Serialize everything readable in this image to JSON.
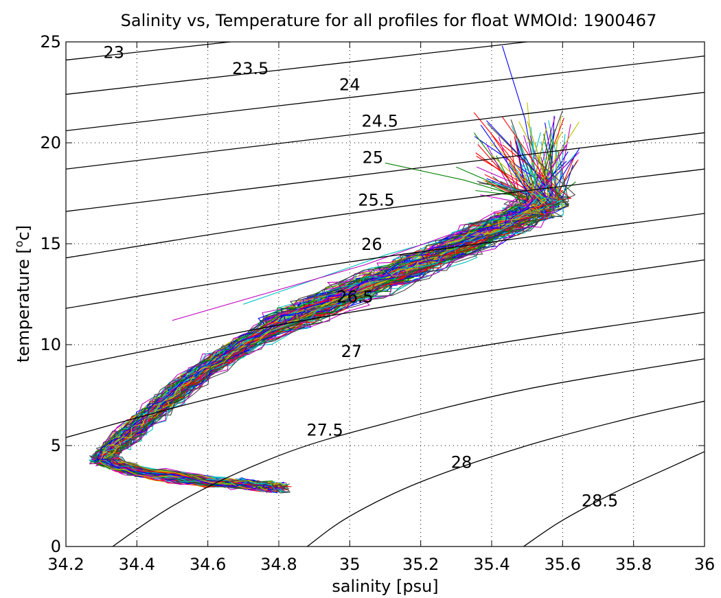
{
  "chart_data": {
    "type": "line",
    "title": "Salinity vs, Temperature for all profiles for float WMOId: 1900467",
    "xlabel": "salinity [psu]",
    "ylabel_main": "temperature [",
    "ylabel_sup": "o",
    "ylabel_tail": "c]",
    "xlim": [
      34.2,
      36.0
    ],
    "ylim": [
      0,
      25
    ],
    "x_ticks": [
      "34.2",
      "34.4",
      "34.6",
      "34.8",
      "35",
      "35.2",
      "35.4",
      "35.6",
      "35.8",
      "36"
    ],
    "y_ticks": [
      "0",
      "5",
      "10",
      "15",
      "20",
      "25"
    ],
    "grid": true,
    "grid_style": "dotted",
    "density_contours": [
      {
        "label": "23",
        "x": [
          34.2,
          36.0
        ],
        "y": [
          24.1,
          27.6
        ]
      },
      {
        "label": "23.5",
        "x": [
          34.2,
          36.0
        ],
        "y": [
          22.4,
          26.0
        ]
      },
      {
        "label": "24",
        "x": [
          34.2,
          36.0
        ],
        "y": [
          20.6,
          24.3
        ]
      },
      {
        "label": "24.5",
        "x": [
          34.2,
          36.0
        ],
        "y": [
          18.7,
          22.5
        ]
      },
      {
        "label": "25",
        "x": [
          34.2,
          36.0
        ],
        "y": [
          16.6,
          20.5
        ]
      },
      {
        "label": "25.5",
        "x": [
          34.2,
          35.0,
          36.0
        ],
        "y": [
          14.3,
          16.5,
          18.7
        ]
      },
      {
        "label": "26",
        "x": [
          34.2,
          35.0,
          36.0
        ],
        "y": [
          11.8,
          14.1,
          16.5
        ]
      },
      {
        "label": "26.5",
        "x": [
          34.2,
          35.0,
          36.0
        ],
        "y": [
          8.9,
          11.6,
          14.2
        ]
      },
      {
        "label": "27",
        "x": [
          34.2,
          34.6,
          35.0,
          35.5,
          36.0
        ],
        "y": [
          5.4,
          7.3,
          8.8,
          10.3,
          11.6
        ]
      },
      {
        "label": "27.5",
        "x": [
          34.2,
          34.5,
          34.8,
          35.1,
          35.5,
          36.0
        ],
        "y": [
          -1.7,
          2.0,
          4.5,
          6.1,
          7.8,
          9.3
        ]
      },
      {
        "label": "28",
        "x": [
          34.88,
          35.0,
          35.2,
          35.5,
          35.8,
          36.0
        ],
        "y": [
          0.0,
          1.5,
          3.2,
          5.0,
          6.4,
          7.2
        ]
      },
      {
        "label": "28.5",
        "x": [
          35.49,
          35.6,
          35.75,
          35.9,
          36.0
        ],
        "y": [
          0.0,
          1.3,
          2.7,
          3.9,
          4.7
        ]
      }
    ],
    "contour_label_positions": [
      {
        "label": "23",
        "x": 34.335,
        "y": 24.5
      },
      {
        "label": "23.5",
        "x": 34.72,
        "y": 23.7
      },
      {
        "label": "24",
        "x": 35.0,
        "y": 22.9
      },
      {
        "label": "24.5",
        "x": 35.085,
        "y": 21.1
      },
      {
        "label": "25",
        "x": 35.065,
        "y": 19.3
      },
      {
        "label": "25.5",
        "x": 35.075,
        "y": 17.2
      },
      {
        "label": "26",
        "x": 35.062,
        "y": 15.0
      },
      {
        "label": "26.5",
        "x": 35.015,
        "y": 12.4
      },
      {
        "label": "27",
        "x": 35.005,
        "y": 9.7
      },
      {
        "label": "27.5",
        "x": 34.93,
        "y": 5.8
      },
      {
        "label": "28",
        "x": 35.315,
        "y": 4.2
      },
      {
        "label": "28.5",
        "x": 35.705,
        "y": 2.3
      }
    ],
    "profile_colors": [
      "#0000ff",
      "#008000",
      "#ff0000",
      "#00bfbf",
      "#bf00bf",
      "#bfbf00",
      "#404040"
    ],
    "profile_count": 120,
    "profile_path": {
      "x": [
        35.55,
        35.48,
        35.38,
        35.25,
        35.12,
        34.98,
        34.85,
        34.72,
        34.62,
        34.52,
        34.45,
        34.38,
        34.32,
        34.3,
        34.4,
        34.6,
        34.75,
        34.8
      ],
      "y": [
        17.0,
        16.3,
        15.5,
        14.4,
        13.4,
        12.4,
        11.4,
        10.2,
        9.1,
        7.8,
        6.7,
        5.6,
        4.7,
        4.3,
        3.7,
        3.2,
        3.0,
        2.9
      ]
    },
    "profile_tops": [
      {
        "x": 35.43,
        "y": 24.8
      },
      {
        "x": 35.1,
        "y": 19.0
      },
      {
        "x": 35.35,
        "y": 21.5
      },
      {
        "x": 34.7,
        "y": 12.0
      },
      {
        "x": 34.5,
        "y": 11.2
      },
      {
        "x": 35.5,
        "y": 22.0
      },
      {
        "x": 35.6,
        "y": 21.6
      },
      {
        "x": 35.55,
        "y": 21.0
      },
      {
        "x": 35.3,
        "y": 18.8
      }
    ]
  }
}
